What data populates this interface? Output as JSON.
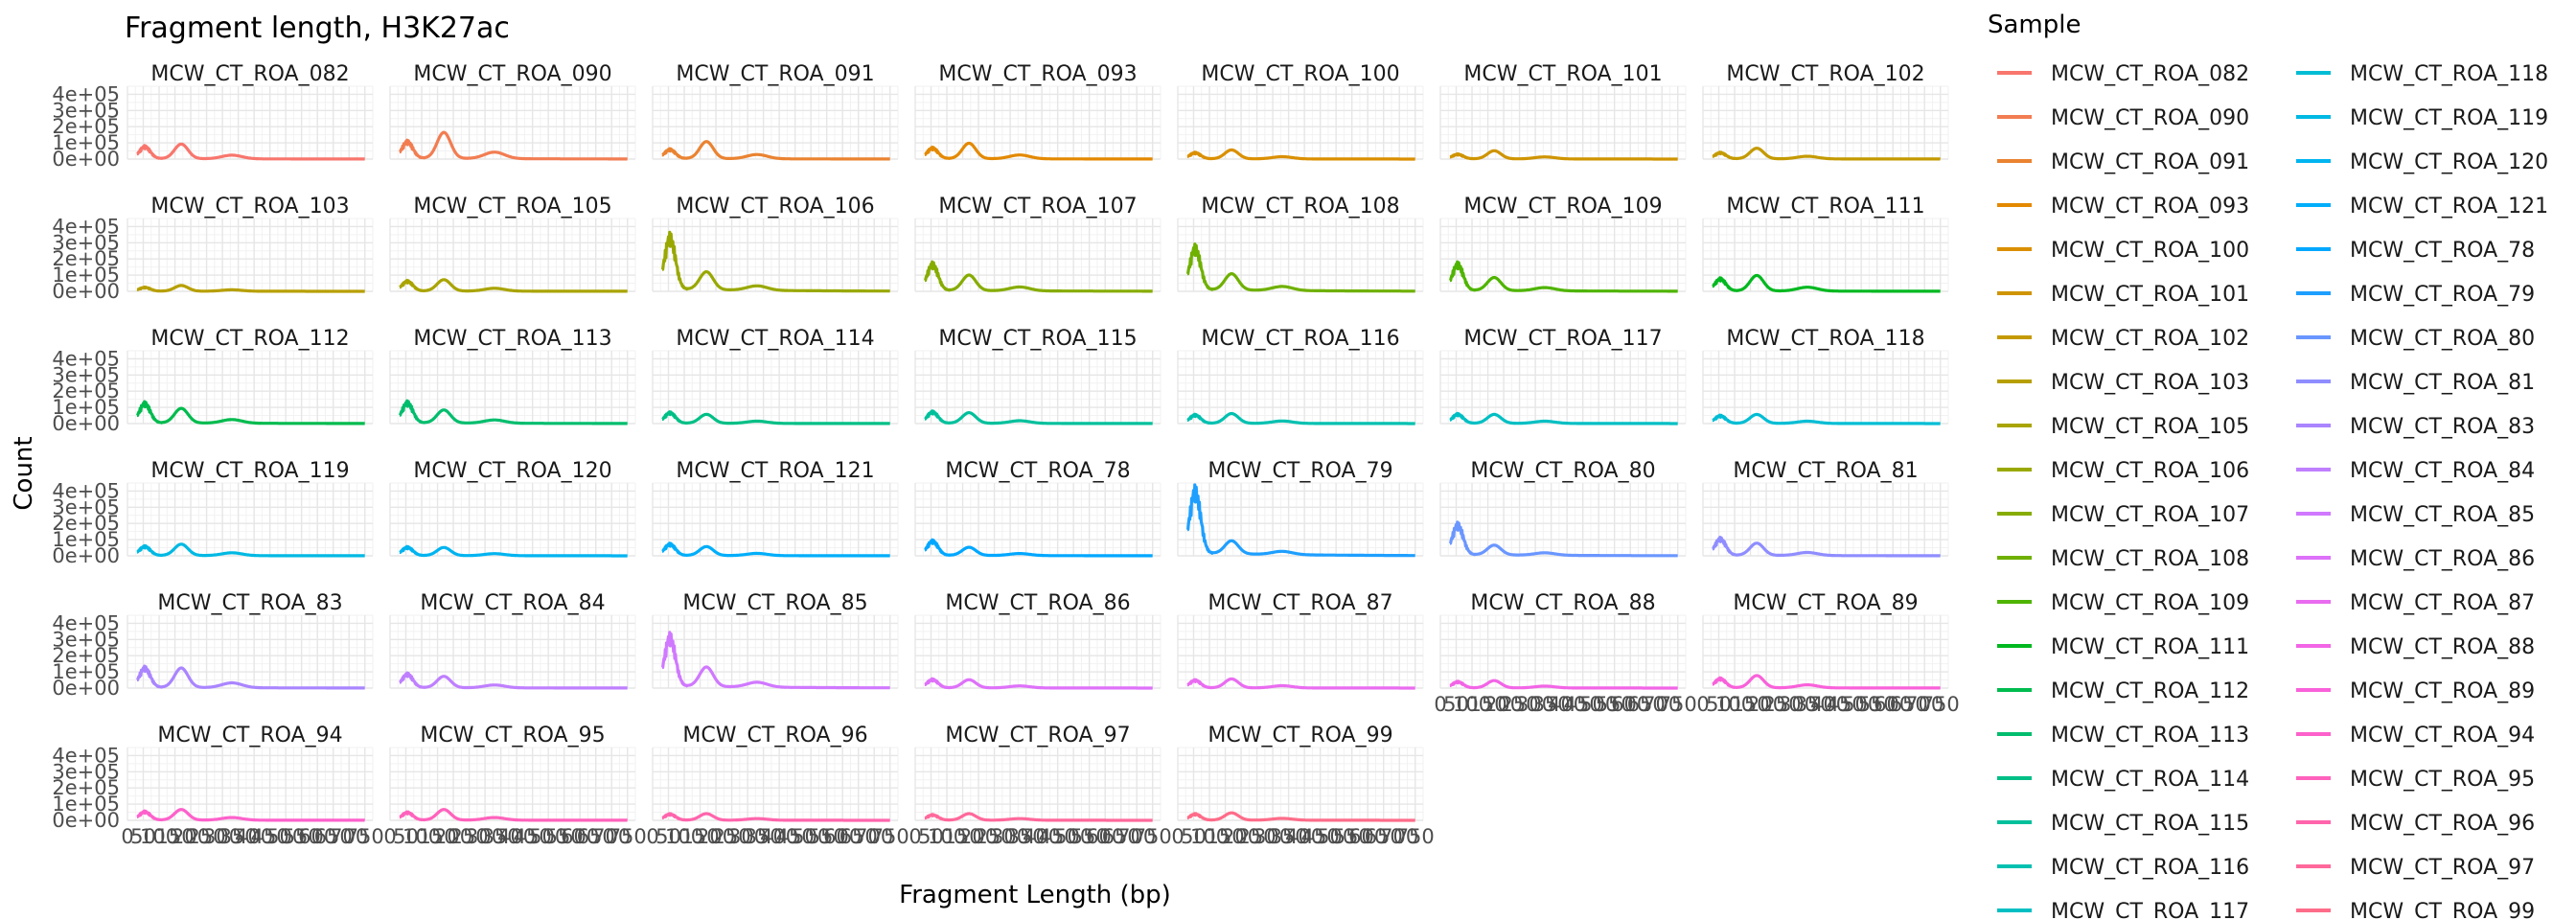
{
  "chart_data": {
    "type": "line",
    "title": "Fragment length, H3K27ac",
    "xlabel": "Fragment Length (bp)",
    "ylabel": "Count",
    "xlim": [
      0,
      775
    ],
    "ylim": [
      0,
      450000
    ],
    "x_ticks": [
      0,
      50,
      100,
      150,
      200,
      250,
      300,
      350,
      400,
      450,
      500,
      550,
      600,
      650,
      700,
      750
    ],
    "x_tick_labels": [
      "0",
      "50",
      "100",
      "150",
      "200",
      "250",
      "300",
      "350",
      "400",
      "450",
      "500",
      "550",
      "600",
      "650",
      "700",
      "750"
    ],
    "y_ticks": [
      0,
      100000,
      200000,
      300000,
      400000
    ],
    "y_tick_labels": [
      "0e+00",
      "1e+05",
      "2e+05",
      "3e+05",
      "4e+05"
    ],
    "grid": true,
    "legend_title": "Sample",
    "legend_position": "right",
    "x_at_panels": [
      "MCW_CT_ROA_88",
      "MCW_CT_ROA_89",
      "MCW_CT_ROA_94",
      "MCW_CT_ROA_95",
      "MCW_CT_ROA_96",
      "MCW_CT_ROA_97",
      "MCW_CT_ROA_99"
    ],
    "series": [
      {
        "name": "MCW_CT_ROA_082",
        "color": "#F8766D",
        "nuc_peak": 80000,
        "di_peak": 90000
      },
      {
        "name": "MCW_CT_ROA_090",
        "color": "#F27D52",
        "nuc_peak": 110000,
        "di_peak": 160000
      },
      {
        "name": "MCW_CT_ROA_091",
        "color": "#EA8331",
        "nuc_peak": 60000,
        "di_peak": 105000
      },
      {
        "name": "MCW_CT_ROA_093",
        "color": "#E38900",
        "nuc_peak": 70000,
        "di_peak": 95000
      },
      {
        "name": "MCW_CT_ROA_100",
        "color": "#DA8F00",
        "nuc_peak": 40000,
        "di_peak": 55000
      },
      {
        "name": "MCW_CT_ROA_101",
        "color": "#CF9400",
        "nuc_peak": 30000,
        "di_peak": 50000
      },
      {
        "name": "MCW_CT_ROA_102",
        "color": "#C49A00",
        "nuc_peak": 40000,
        "di_peak": 65000
      },
      {
        "name": "MCW_CT_ROA_103",
        "color": "#B79F00",
        "nuc_peak": 25000,
        "di_peak": 35000
      },
      {
        "name": "MCW_CT_ROA_105",
        "color": "#A9A400",
        "nuc_peak": 65000,
        "di_peak": 70000
      },
      {
        "name": "MCW_CT_ROA_106",
        "color": "#99A800",
        "nuc_peak": 350000,
        "di_peak": 110000
      },
      {
        "name": "MCW_CT_ROA_107",
        "color": "#86AC00",
        "nuc_peak": 175000,
        "di_peak": 95000
      },
      {
        "name": "MCW_CT_ROA_108",
        "color": "#6FB000",
        "nuc_peak": 280000,
        "di_peak": 100000
      },
      {
        "name": "MCW_CT_ROA_109",
        "color": "#4FB400",
        "nuc_peak": 175000,
        "di_peak": 80000
      },
      {
        "name": "MCW_CT_ROA_111",
        "color": "#00B81F",
        "nuc_peak": 80000,
        "di_peak": 95000
      },
      {
        "name": "MCW_CT_ROA_112",
        "color": "#00BB4E",
        "nuc_peak": 130000,
        "di_peak": 90000
      },
      {
        "name": "MCW_CT_ROA_113",
        "color": "#00BD6D",
        "nuc_peak": 135000,
        "di_peak": 80000
      },
      {
        "name": "MCW_CT_ROA_114",
        "color": "#00BF86",
        "nuc_peak": 70000,
        "di_peak": 55000
      },
      {
        "name": "MCW_CT_ROA_115",
        "color": "#00C09C",
        "nuc_peak": 75000,
        "di_peak": 65000
      },
      {
        "name": "MCW_CT_ROA_116",
        "color": "#00C0B0",
        "nuc_peak": 55000,
        "di_peak": 60000
      },
      {
        "name": "MCW_CT_ROA_117",
        "color": "#00BFC3",
        "nuc_peak": 60000,
        "di_peak": 55000
      },
      {
        "name": "MCW_CT_ROA_118",
        "color": "#00BDD4",
        "nuc_peak": 50000,
        "di_peak": 55000
      },
      {
        "name": "MCW_CT_ROA_119",
        "color": "#00B9E3",
        "nuc_peak": 60000,
        "di_peak": 70000
      },
      {
        "name": "MCW_CT_ROA_120",
        "color": "#00B4F0",
        "nuc_peak": 55000,
        "di_peak": 50000
      },
      {
        "name": "MCW_CT_ROA_121",
        "color": "#00AEFA",
        "nuc_peak": 75000,
        "di_peak": 55000
      },
      {
        "name": "MCW_CT_ROA_78",
        "color": "#00A7FF",
        "nuc_peak": 95000,
        "di_peak": 50000
      },
      {
        "name": "MCW_CT_ROA_79",
        "color": "#1E9FFF",
        "nuc_peak": 420000,
        "di_peak": 80000
      },
      {
        "name": "MCW_CT_ROA_80",
        "color": "#6A96FF",
        "nuc_peak": 200000,
        "di_peak": 60000
      },
      {
        "name": "MCW_CT_ROA_81",
        "color": "#8F8DFF",
        "nuc_peak": 110000,
        "di_peak": 75000
      },
      {
        "name": "MCW_CT_ROA_83",
        "color": "#AA85FF",
        "nuc_peak": 130000,
        "di_peak": 120000
      },
      {
        "name": "MCW_CT_ROA_84",
        "color": "#BF7FFF",
        "nuc_peak": 90000,
        "di_peak": 70000
      },
      {
        "name": "MCW_CT_ROA_85",
        "color": "#D078FF",
        "nuc_peak": 330000,
        "di_peak": 120000
      },
      {
        "name": "MCW_CT_ROA_86",
        "color": "#DE71F9",
        "nuc_peak": 55000,
        "di_peak": 50000
      },
      {
        "name": "MCW_CT_ROA_87",
        "color": "#E96CF0",
        "nuc_peak": 50000,
        "di_peak": 55000
      },
      {
        "name": "MCW_CT_ROA_88",
        "color": "#F265E6",
        "nuc_peak": 40000,
        "di_peak": 45000
      },
      {
        "name": "MCW_CT_ROA_89",
        "color": "#F961DA",
        "nuc_peak": 60000,
        "di_peak": 75000
      },
      {
        "name": "MCW_CT_ROA_94",
        "color": "#FD61CB",
        "nuc_peak": 55000,
        "di_peak": 65000
      },
      {
        "name": "MCW_CT_ROA_95",
        "color": "#FF62BC",
        "nuc_peak": 50000,
        "di_peak": 65000
      },
      {
        "name": "MCW_CT_ROA_96",
        "color": "#FF65AC",
        "nuc_peak": 40000,
        "di_peak": 40000
      },
      {
        "name": "MCW_CT_ROA_97",
        "color": "#FF689B",
        "nuc_peak": 35000,
        "di_peak": 40000
      },
      {
        "name": "MCW_CT_ROA_99",
        "color": "#FE6C89",
        "nuc_peak": 40000,
        "di_peak": 45000
      }
    ]
  }
}
